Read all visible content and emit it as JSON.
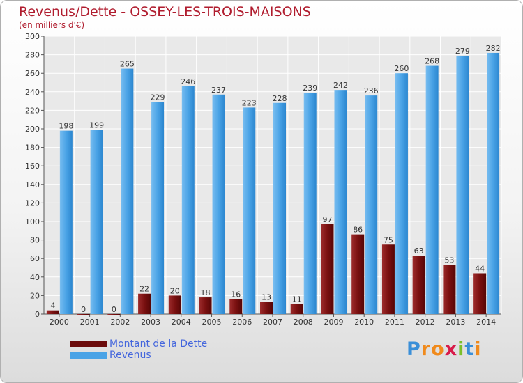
{
  "title": "Revenus/Dette - OSSEY-LES-TROIS-MAISONS",
  "subtitle": "(en milliers d'€)",
  "chart_data": {
    "type": "bar",
    "title": "Revenus/Dette - OSSEY-LES-TROIS-MAISONS",
    "subtitle": "(en milliers d'€)",
    "categories": [
      "2000",
      "2001",
      "2002",
      "2003",
      "2004",
      "2005",
      "2006",
      "2007",
      "2008",
      "2009",
      "2010",
      "2011",
      "2012",
      "2013",
      "2014"
    ],
    "series": [
      {
        "name": "Montant de la Dette",
        "color": "#7a1010",
        "values": [
          4,
          0,
          0,
          22,
          20,
          18,
          16,
          13,
          11,
          97,
          86,
          75,
          63,
          53,
          44
        ]
      },
      {
        "name": "Revenus",
        "color": "#4a9fe0",
        "values": [
          198,
          199,
          265,
          229,
          246,
          237,
          223,
          228,
          239,
          242,
          236,
          260,
          268,
          279,
          282
        ]
      }
    ],
    "yticks": [
      0,
      20,
      40,
      60,
      80,
      100,
      120,
      140,
      160,
      180,
      200,
      220,
      240,
      260,
      280,
      300
    ],
    "ylim": [
      0,
      300
    ],
    "grid": true,
    "legend": "bottom-left"
  },
  "legend": {
    "items": [
      {
        "label": "Montant de la Dette",
        "color": "#6b0b0b"
      },
      {
        "label": "Revenus",
        "color": "#4aa3e6"
      }
    ]
  },
  "logo": {
    "letters": [
      {
        "ch": "P",
        "color": "#3a8fd8"
      },
      {
        "ch": "r",
        "color": "#f08a1c"
      },
      {
        "ch": "o",
        "color": "#f08a1c"
      },
      {
        "ch": "x",
        "color": "#d81b4a"
      },
      {
        "ch": "i",
        "color": "#7bbf2a"
      },
      {
        "ch": "t",
        "color": "#3a8fd8"
      },
      {
        "ch": "i",
        "color": "#f08a1c"
      }
    ]
  }
}
